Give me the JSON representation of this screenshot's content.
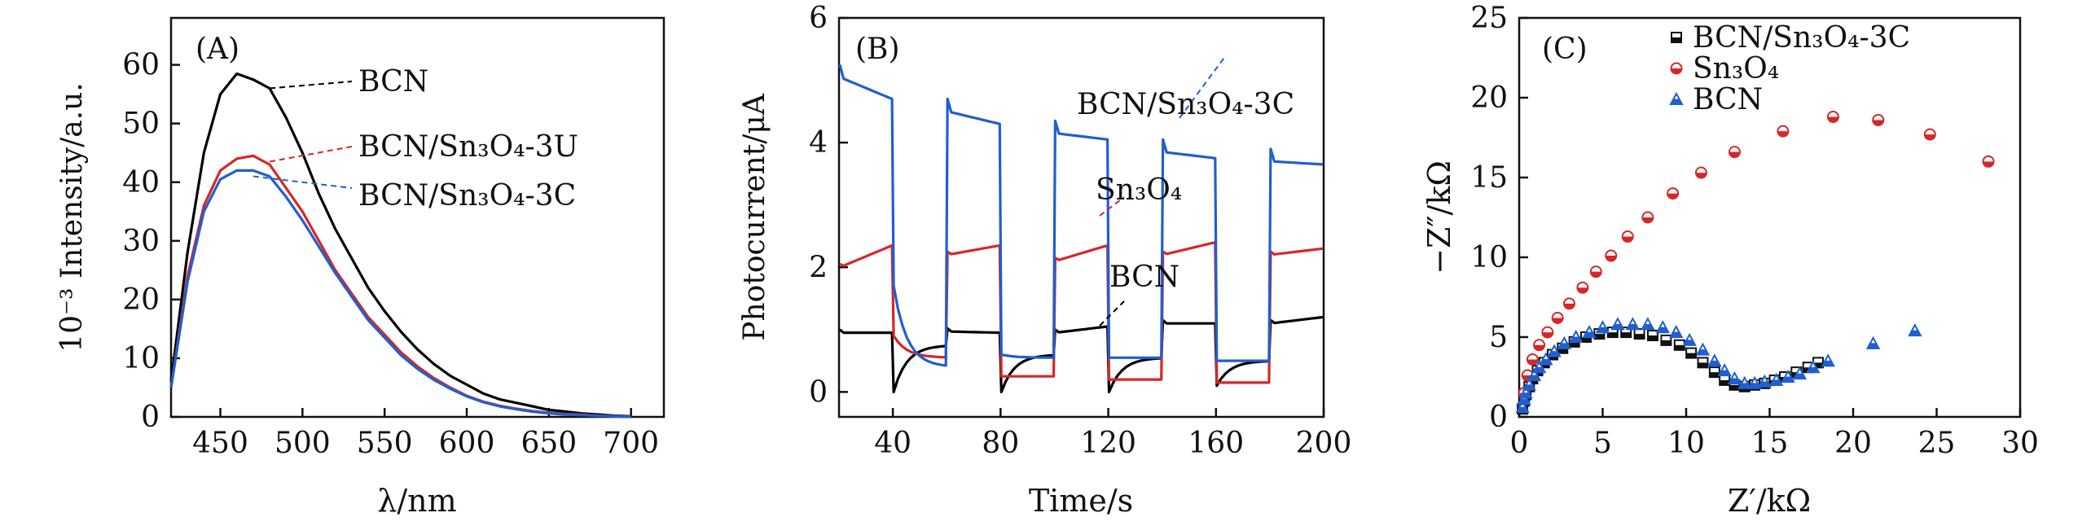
{
  "chart_data": [
    {
      "type": "line",
      "panel_label": "(A)",
      "xlabel": "λ/nm",
      "ylabel": "10⁻³ Intensity/a.u.",
      "xlim": [
        420,
        720
      ],
      "ylim": [
        0,
        68
      ],
      "xticks": [
        450,
        500,
        550,
        600,
        650,
        700
      ],
      "yticks": [
        0,
        10,
        20,
        30,
        40,
        50,
        60
      ],
      "x": [
        420,
        430,
        440,
        450,
        460,
        470,
        480,
        490,
        500,
        510,
        520,
        530,
        540,
        550,
        560,
        570,
        580,
        590,
        600,
        610,
        620,
        630,
        640,
        650,
        660,
        670,
        680,
        690,
        700
      ],
      "series": [
        {
          "name": "BCN",
          "color": "#000000",
          "values": [
            6,
            28,
            45,
            55,
            58.5,
            57.5,
            56,
            51,
            45,
            38,
            32,
            27,
            22,
            18,
            14.5,
            11.5,
            9,
            7,
            5.5,
            4,
            3,
            2.4,
            1.8,
            1.2,
            0.9,
            0.6,
            0.4,
            0.2,
            0.1
          ]
        },
        {
          "name": "BCN/Sn₃O₄-3U",
          "color": "#d62728",
          "values": [
            5,
            24,
            36,
            42,
            44,
            44.5,
            43,
            39,
            35,
            30,
            25,
            21,
            17,
            14,
            11,
            8.6,
            6.6,
            5,
            3.6,
            2.6,
            1.9,
            1.4,
            1.0,
            0.7,
            0.5,
            0.4,
            0.2,
            0.1,
            0
          ]
        },
        {
          "name": "BCN/Sn₃O₄-3C",
          "color": "#1f5fd0",
          "values": [
            5,
            23,
            35,
            40.5,
            42,
            42,
            41,
            37.5,
            33.5,
            29,
            24.5,
            20.5,
            16.5,
            13.5,
            10.5,
            8.2,
            6.3,
            4.8,
            3.5,
            2.5,
            1.8,
            1.3,
            0.9,
            0.6,
            0.4,
            0.3,
            0.2,
            0.1,
            0
          ]
        }
      ],
      "annotations": [
        {
          "text": "BCN",
          "series": "BCN"
        },
        {
          "text": "BCN/Sn₃O₄-3U",
          "series": "BCN/Sn₃O₄-3U"
        },
        {
          "text": "BCN/Sn₃O₄-3C",
          "series": "BCN/Sn₃O₄-3C"
        }
      ]
    },
    {
      "type": "line",
      "panel_label": "(B)",
      "xlabel": "Time/s",
      "ylabel": "Photocurrent/μA",
      "xlim": [
        20,
        200
      ],
      "ylim": [
        -0.4,
        6
      ],
      "xticks": [
        40,
        80,
        120,
        160,
        200
      ],
      "yticks": [
        0,
        2,
        4,
        6
      ],
      "light_on": [
        20,
        60,
        100,
        140,
        180
      ],
      "light_off": [
        40,
        80,
        120,
        160
      ],
      "series": [
        {
          "name": "BCN",
          "color": "#000000",
          "on_start": [
            0.95,
            0.97,
            0.95,
            1.1,
            1.1
          ],
          "on_end": [
            0.95,
            0.95,
            1.05,
            1.1,
            1.2
          ],
          "off_dip": [
            0.0,
            0.0,
            0.0,
            0.1
          ],
          "off_level": [
            0.75,
            0.6,
            0.55,
            0.5
          ]
        },
        {
          "name": "Sn₃O₄",
          "color": "#d62728",
          "on_start": [
            2.0,
            2.2,
            2.1,
            2.2,
            2.2
          ],
          "on_end": [
            2.35,
            2.35,
            2.35,
            2.4,
            2.3
          ],
          "off_dip": [
            0.9,
            0.25,
            0.2,
            0.15
          ],
          "off_level": [
            0.55,
            0.25,
            0.2,
            0.15
          ]
        },
        {
          "name": "BCN/Sn₃O₄-3C",
          "color": "#1f5fd0",
          "on_start": [
            5.05,
            4.5,
            4.15,
            3.85,
            3.7
          ],
          "on_end": [
            4.7,
            4.3,
            4.05,
            3.75,
            3.65
          ],
          "off_dip": [
            1.7,
            0.6,
            0.55,
            0.5
          ],
          "off_level": [
            0.4,
            0.55,
            0.55,
            0.5
          ]
        }
      ],
      "annotations": [
        {
          "text": "BCN/Sn₃O₄-3C",
          "series": "BCN/Sn₃O₄-3C"
        },
        {
          "text": "Sn₃O₄",
          "series": "Sn₃O₄"
        },
        {
          "text": "BCN",
          "series": "BCN"
        }
      ]
    },
    {
      "type": "scatter",
      "panel_label": "(C)",
      "xlabel": "Z′/kΩ",
      "ylabel": "−Z″/kΩ",
      "xlim": [
        0,
        30
      ],
      "ylim": [
        0,
        25
      ],
      "xticks": [
        0,
        5,
        10,
        15,
        20,
        25,
        30
      ],
      "yticks": [
        0,
        5,
        10,
        15,
        20,
        25
      ],
      "legend": "top-left",
      "series": [
        {
          "name": "BCN/Sn₃O₄-3C",
          "color": "#111111",
          "marker": "square",
          "points": [
            [
              0.2,
              0.5
            ],
            [
              0.3,
              1.0
            ],
            [
              0.4,
              1.4
            ],
            [
              0.6,
              1.9
            ],
            [
              0.8,
              2.4
            ],
            [
              1.1,
              2.9
            ],
            [
              1.5,
              3.4
            ],
            [
              2.0,
              3.9
            ],
            [
              2.6,
              4.3
            ],
            [
              3.3,
              4.7
            ],
            [
              4.0,
              5.0
            ],
            [
              4.8,
              5.2
            ],
            [
              5.6,
              5.3
            ],
            [
              6.4,
              5.3
            ],
            [
              7.2,
              5.2
            ],
            [
              8.0,
              5.1
            ],
            [
              8.8,
              4.8
            ],
            [
              9.6,
              4.5
            ],
            [
              10.3,
              4.0
            ],
            [
              11.0,
              3.4
            ],
            [
              11.7,
              2.8
            ],
            [
              12.3,
              2.3
            ],
            [
              12.9,
              2.0
            ],
            [
              13.5,
              1.9
            ],
            [
              14.1,
              2.0
            ],
            [
              14.7,
              2.1
            ],
            [
              15.3,
              2.3
            ],
            [
              15.9,
              2.5
            ],
            [
              16.6,
              2.8
            ],
            [
              17.3,
              3.1
            ],
            [
              17.9,
              3.4
            ]
          ]
        },
        {
          "name": "Sn₃O₄",
          "color": "#d62728",
          "marker": "circle",
          "points": [
            [
              0.3,
              1.5
            ],
            [
              0.5,
              2.6
            ],
            [
              0.8,
              3.6
            ],
            [
              1.2,
              4.5
            ],
            [
              1.7,
              5.3
            ],
            [
              2.3,
              6.2
            ],
            [
              3.0,
              7.1
            ],
            [
              3.8,
              8.1
            ],
            [
              4.6,
              9.1
            ],
            [
              5.5,
              10.1
            ],
            [
              6.5,
              11.3
            ],
            [
              7.7,
              12.5
            ],
            [
              9.2,
              14.0
            ],
            [
              10.9,
              15.3
            ],
            [
              12.9,
              16.6
            ],
            [
              15.8,
              17.9
            ],
            [
              18.8,
              18.8
            ],
            [
              21.5,
              18.6
            ],
            [
              24.6,
              17.7
            ],
            [
              28.1,
              16.0
            ]
          ]
        },
        {
          "name": "BCN",
          "color": "#1f5fd0",
          "marker": "triangle",
          "points": [
            [
              0.2,
              0.6
            ],
            [
              0.3,
              1.1
            ],
            [
              0.4,
              1.5
            ],
            [
              0.6,
              2.0
            ],
            [
              0.9,
              2.6
            ],
            [
              1.2,
              3.1
            ],
            [
              1.6,
              3.6
            ],
            [
              2.1,
              4.1
            ],
            [
              2.7,
              4.6
            ],
            [
              3.4,
              5.0
            ],
            [
              4.2,
              5.3
            ],
            [
              5.0,
              5.6
            ],
            [
              5.9,
              5.8
            ],
            [
              6.8,
              5.8
            ],
            [
              7.7,
              5.8
            ],
            [
              8.6,
              5.6
            ],
            [
              9.4,
              5.3
            ],
            [
              10.2,
              4.8
            ],
            [
              11.0,
              4.2
            ],
            [
              11.7,
              3.5
            ],
            [
              12.3,
              2.9
            ],
            [
              12.9,
              2.4
            ],
            [
              13.5,
              2.1
            ],
            [
              14.1,
              2.1
            ],
            [
              14.7,
              2.2
            ],
            [
              15.4,
              2.3
            ],
            [
              16.1,
              2.5
            ],
            [
              16.8,
              2.7
            ],
            [
              17.6,
              3.1
            ],
            [
              18.5,
              3.5
            ],
            [
              21.2,
              4.6
            ],
            [
              23.7,
              5.4
            ]
          ]
        }
      ]
    }
  ]
}
